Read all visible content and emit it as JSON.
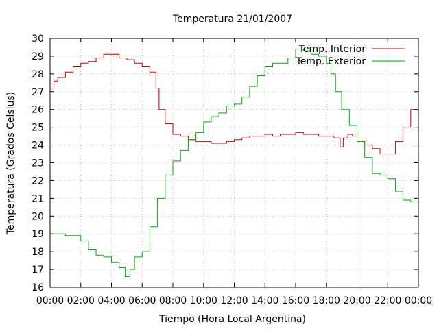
{
  "chart_data": {
    "type": "line",
    "title": "Temperatura 21/01/2007",
    "xlabel": "Tiempo (Hora Local Argentina)",
    "ylabel": "Temperatura (Grados Celsius)",
    "xlim": [
      0,
      24
    ],
    "ylim": [
      16,
      30
    ],
    "xticks": [
      0,
      2,
      4,
      6,
      8,
      10,
      12,
      14,
      16,
      18,
      20,
      22,
      24
    ],
    "xtick_labels": [
      "00:00",
      "02:00",
      "04:00",
      "06:00",
      "08:00",
      "10:00",
      "12:00",
      "14:00",
      "16:00",
      "18:00",
      "20:00",
      "22:00",
      "00:00"
    ],
    "yticks": [
      16,
      17,
      18,
      19,
      20,
      21,
      22,
      23,
      24,
      25,
      26,
      27,
      28,
      29,
      30
    ],
    "grid": true,
    "legend_position": "top-right",
    "series": [
      {
        "name": "Temp. Interior",
        "color": "#cc0000",
        "step": true,
        "x": [
          0,
          0.25,
          0.5,
          1,
          1.5,
          2,
          2.5,
          3,
          3.5,
          4,
          4.5,
          5,
          5.5,
          6,
          6.5,
          6.9,
          7.1,
          7.5,
          8,
          8.5,
          9,
          9.5,
          10,
          10.5,
          11,
          11.5,
          12,
          12.5,
          13,
          13.5,
          14,
          14.5,
          15,
          15.5,
          16,
          16.5,
          17,
          17.5,
          18,
          18.5,
          18.9,
          19.1,
          19.4,
          19.7,
          20,
          20.5,
          21,
          21.5,
          22,
          22.5,
          23,
          23.5,
          24
        ],
        "y": [
          27.2,
          27.6,
          27.8,
          28.1,
          28.4,
          28.6,
          28.7,
          28.9,
          29.1,
          29.1,
          28.9,
          28.8,
          28.6,
          28.4,
          28.1,
          27.2,
          26.0,
          25.2,
          24.6,
          24.5,
          24.3,
          24.2,
          24.2,
          24.1,
          24.1,
          24.2,
          24.3,
          24.4,
          24.5,
          24.5,
          24.6,
          24.5,
          24.6,
          24.6,
          24.7,
          24.6,
          24.6,
          24.5,
          24.5,
          24.4,
          23.9,
          24.4,
          24.6,
          24.5,
          24.2,
          24.0,
          23.8,
          23.5,
          23.5,
          24.2,
          25.0,
          26.0,
          27.0
        ]
      },
      {
        "name": "Temp. Exterior",
        "color": "#00aa00",
        "step": true,
        "x": [
          0,
          0.5,
          1,
          1.5,
          2,
          2.5,
          3,
          3.5,
          4,
          4.5,
          4.9,
          5.2,
          5.5,
          6,
          6.5,
          7,
          7.5,
          8,
          8.5,
          9,
          9.5,
          10,
          10.5,
          11,
          11.5,
          12,
          12.5,
          13,
          13.5,
          14,
          14.5,
          15,
          15.5,
          16,
          16.5,
          17,
          17.5,
          18,
          18.3,
          18.6,
          19,
          19.5,
          20,
          20.5,
          21,
          21.5,
          22,
          22.5,
          23,
          23.5,
          24
        ],
        "y": [
          19.0,
          19.0,
          18.9,
          18.9,
          18.6,
          18.1,
          17.8,
          17.7,
          17.4,
          17.1,
          16.6,
          17.0,
          17.7,
          18.0,
          19.4,
          21.0,
          22.3,
          23.1,
          23.7,
          24.3,
          24.7,
          25.3,
          25.6,
          25.8,
          26.2,
          26.3,
          26.7,
          27.3,
          27.9,
          28.4,
          28.6,
          28.6,
          28.9,
          29.4,
          29.3,
          29.1,
          29.0,
          28.6,
          28.0,
          27.0,
          26.0,
          25.1,
          24.2,
          23.3,
          22.4,
          22.3,
          22.1,
          21.4,
          20.9,
          20.8,
          20.3
        ]
      }
    ]
  }
}
